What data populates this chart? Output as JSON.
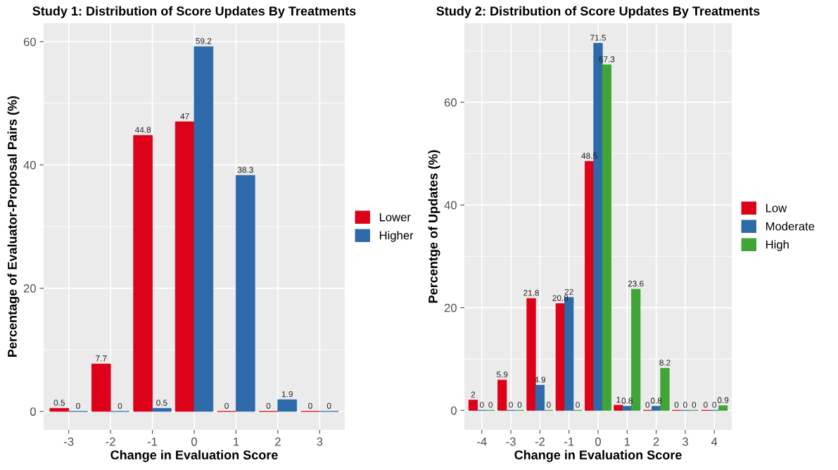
{
  "chart_data": [
    {
      "type": "bar",
      "title": "Study 1: Distribution of Score Updates By Treatments",
      "xlabel": "Change in Evaluation Score",
      "ylabel": "Percentage of Evaluator-Proposal Pairs (%)",
      "categories": [
        "-3",
        "-2",
        "-1",
        "0",
        "1",
        "2",
        "3"
      ],
      "series": [
        {
          "name": "Lower",
          "color": "#dc0018",
          "values": [
            0.5,
            7.7,
            44.8,
            47,
            0,
            0,
            0
          ]
        },
        {
          "name": "Higher",
          "color": "#2e6aa9",
          "values": [
            0,
            0,
            0.5,
            59.2,
            38.3,
            1.9,
            0
          ]
        }
      ],
      "ylim": [
        -3,
        63
      ],
      "yticks": [
        0,
        20,
        40,
        60
      ],
      "grid": true,
      "legend": "right",
      "data_labels": true
    },
    {
      "type": "bar",
      "title": "Study 2: Distribution of Score Updates By Treatments",
      "xlabel": "Change in Evaluation Score",
      "ylabel": "Percentge of Updates (%)",
      "categories": [
        "-4",
        "-3",
        "-2",
        "-1",
        "0",
        "1",
        "2",
        "3",
        "4"
      ],
      "series": [
        {
          "name": "Low",
          "color": "#dc0018",
          "values": [
            2,
            5.9,
            21.8,
            20.8,
            48.5,
            1,
            0,
            0,
            0
          ]
        },
        {
          "name": "Moderate",
          "color": "#2e6aa9",
          "values": [
            0,
            0,
            4.9,
            22,
            71.5,
            0.8,
            0.8,
            0,
            0
          ]
        },
        {
          "name": "High",
          "color": "#3fa535",
          "values": [
            0,
            0,
            0,
            0,
            67.3,
            23.6,
            8.2,
            0,
            0.9
          ]
        }
      ],
      "ylim": [
        -3.8,
        75.4
      ],
      "yticks": [
        0,
        20,
        40,
        60
      ],
      "grid": true,
      "legend": "right",
      "data_labels": true
    }
  ]
}
